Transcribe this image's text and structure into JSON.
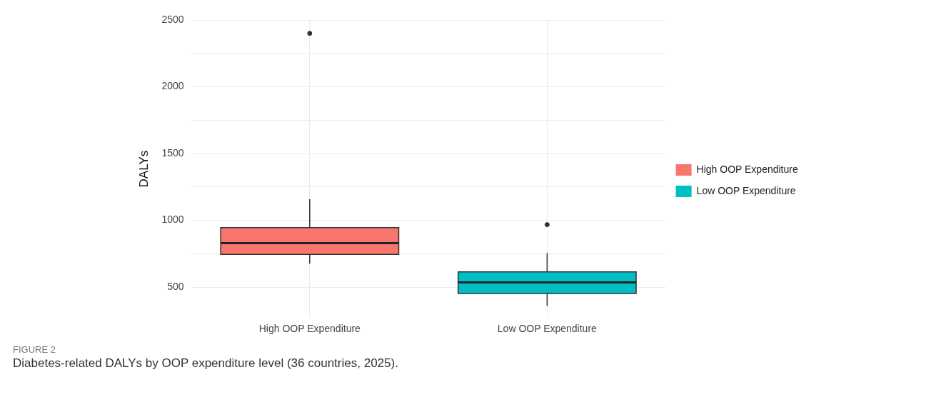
{
  "chart_data": {
    "type": "box",
    "ylabel": "DALYs",
    "categories": [
      "High OOP Expenditure",
      "Low OOP Expenditure"
    ],
    "series": [
      {
        "name": "High OOP Expenditure",
        "color": "#f8766d",
        "boxes": [
          {
            "low": 676,
            "q1": 745,
            "median": 829,
            "q3": 946,
            "high": 1158,
            "outliers": [
              2400
            ]
          },
          null
        ]
      },
      {
        "name": "Low OOP Expenditure",
        "color": "#00bfc4",
        "boxes": [
          null,
          {
            "low": 359,
            "q1": 453,
            "median": 535,
            "q3": 614,
            "high": 755,
            "outliers": [
              968
            ]
          }
        ]
      }
    ],
    "ylim": [
      270,
      2500
    ],
    "yticks": [
      500,
      {
        "value": 750,
        "label": null
      },
      1000,
      {
        "value": 1250,
        "label": null
      },
      1500,
      {
        "value": 1750,
        "label": null
      },
      2000,
      {
        "value": 2250,
        "label": null
      },
      2500
    ],
    "grid": true,
    "legend": "right",
    "annotations": [
      "FIGURE 2",
      "Diabetes-related DALYs by OOP expenditure level (36 countries, 2025)."
    ]
  }
}
